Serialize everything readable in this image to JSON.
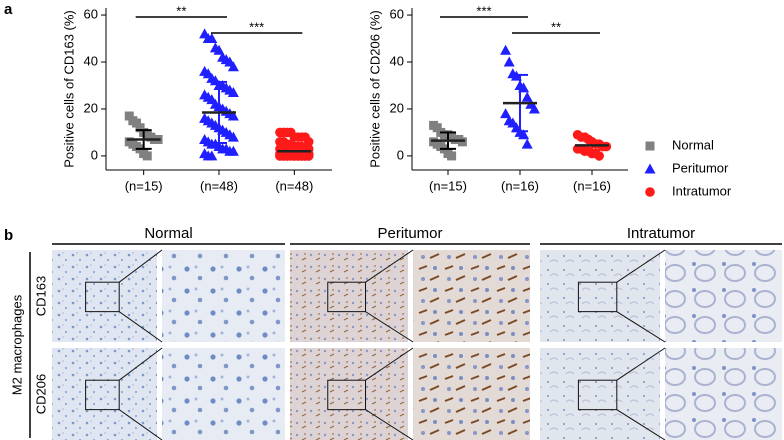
{
  "panels": [
    "a",
    "b"
  ],
  "chart_data": [
    {
      "type": "strip",
      "y_label": "Positive cells of CD163 (%)",
      "categories": [
        "(n=15)",
        "(n=48)",
        "(n=48)"
      ],
      "ylim": [
        -6,
        63
      ],
      "yticks": [
        0,
        20,
        40,
        60
      ],
      "annotations": [
        "**",
        "***"
      ],
      "series": [
        {
          "name": "Normal",
          "color": "#808080",
          "text_color": "#000000",
          "marker": "square",
          "values": [
            17,
            15,
            14,
            12,
            10,
            9,
            8,
            7,
            7,
            6,
            5,
            4,
            3,
            1,
            0
          ],
          "mean": 7,
          "sd": 4
        },
        {
          "name": "Peritumor",
          "color": "#1f1fff",
          "text_color": "#1f1fff",
          "marker": "triangle",
          "values": [
            52,
            50,
            50,
            46,
            45,
            42,
            41,
            40,
            38,
            36,
            35,
            33,
            32,
            30,
            30,
            29,
            28,
            27,
            26,
            25,
            24,
            22,
            21,
            20,
            19,
            18,
            17,
            16,
            15,
            14,
            13,
            12,
            11,
            10,
            9,
            8,
            7,
            6,
            5,
            5,
            4,
            3,
            3,
            2,
            2,
            1,
            0,
            0
          ],
          "mean": 18.5,
          "sd": 13
        },
        {
          "name": "Intratumor",
          "color": "#ff1a1a",
          "text_color": "#ff1a1a",
          "marker": "circle",
          "values": [
            10,
            10,
            10,
            10,
            8,
            8,
            8,
            8,
            6,
            6,
            6,
            5,
            5,
            4,
            4,
            4,
            3,
            3,
            3,
            3,
            2,
            2,
            2,
            2,
            2,
            1,
            1,
            1,
            1,
            1,
            1,
            0,
            0,
            0,
            0,
            0,
            0,
            0,
            0,
            0,
            0,
            0,
            0,
            0,
            0,
            0,
            0,
            0
          ],
          "mean": 2,
          "sd": 3
        }
      ]
    },
    {
      "type": "strip",
      "y_label": "Positive cells of CD206 (%)",
      "categories": [
        "(n=15)",
        "(n=16)",
        "(n=16)"
      ],
      "ylim": [
        -6,
        63
      ],
      "yticks": [
        0,
        20,
        40,
        60
      ],
      "annotations": [
        "***",
        "**"
      ],
      "series": [
        {
          "color": "#808080",
          "marker": "square",
          "values": [
            13,
            12,
            10,
            9,
            9,
            8,
            7,
            7,
            6,
            6,
            5,
            4,
            3,
            1,
            0
          ],
          "mean": 6.5,
          "sd": 3.5
        },
        {
          "color": "#1f1fff",
          "marker": "triangle",
          "values": [
            45,
            40,
            35,
            34,
            30,
            29,
            25,
            22,
            20,
            18,
            15,
            14,
            12,
            10,
            9,
            5
          ],
          "mean": 22.5,
          "sd": 12
        },
        {
          "color": "#ff1a1a",
          "marker": "circle",
          "values": [
            9,
            8,
            8,
            7,
            6,
            5,
            5,
            4,
            4,
            3,
            3,
            2,
            2,
            1,
            1,
            0
          ],
          "mean": 4.5,
          "sd": 2
        }
      ]
    }
  ],
  "histology": {
    "columns": [
      {
        "title": "Normal",
        "color": "#000000"
      },
      {
        "title": "Peritumor",
        "color": "#1f1fff"
      },
      {
        "title": "Intratumor",
        "color": "#ff1a1a"
      }
    ],
    "rows": [
      "CD163",
      "CD206"
    ],
    "row_group": "M2 macrophages"
  }
}
